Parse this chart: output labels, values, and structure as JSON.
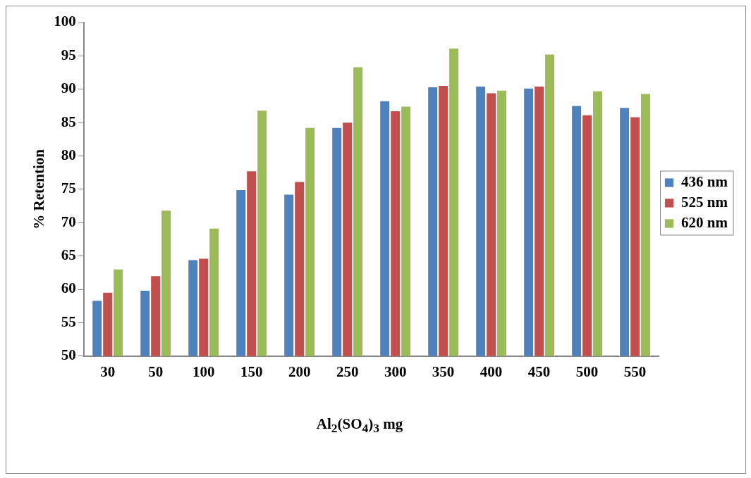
{
  "chart_data": {
    "type": "bar",
    "xlabel": "Al$_{2}$(SO$_{4}$)$_{3}$ mg",
    "ylabel": "% Retention",
    "categories": [
      "30",
      "50",
      "100",
      "150",
      "200",
      "250",
      "300",
      "350",
      "400",
      "450",
      "500",
      "550"
    ],
    "series": [
      {
        "name": "436 nm",
        "color": "#4f81bd",
        "values": [
          58.4,
          59.9,
          64.5,
          75.0,
          74.3,
          84.3,
          88.3,
          90.4,
          90.5,
          90.2,
          87.6,
          87.3
        ]
      },
      {
        "name": "525 nm",
        "color": "#c0504d",
        "values": [
          59.6,
          62.1,
          64.7,
          77.8,
          76.2,
          85.1,
          86.8,
          90.6,
          89.5,
          90.5,
          86.2,
          85.9
        ]
      },
      {
        "name": "620 nm",
        "color": "#9bbb59",
        "values": [
          63.1,
          71.9,
          69.2,
          86.9,
          84.3,
          93.4,
          87.5,
          96.2,
          89.9,
          95.3,
          89.8,
          89.4
        ]
      }
    ],
    "ylim": [
      50,
      100
    ],
    "yticks": [
      50,
      55,
      60,
      65,
      70,
      75,
      80,
      85,
      90,
      95,
      100
    ],
    "grid": false,
    "legend": "right"
  }
}
